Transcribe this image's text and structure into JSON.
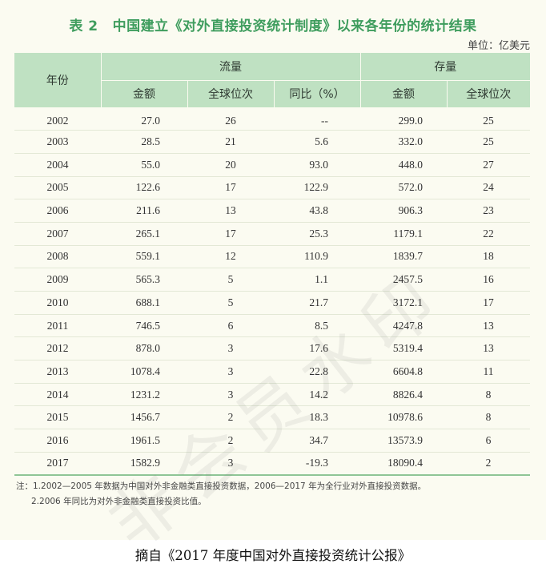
{
  "title": {
    "table_no": "表 2",
    "text": "中国建立《对外直接投资统计制度》以来各年份的统计结果"
  },
  "unit": "单位：亿美元",
  "headers": {
    "year": "年份",
    "flow": "流量",
    "stock": "存量",
    "flow_amount": "金额",
    "flow_rank": "全球位次",
    "flow_yoy": "同比（%）",
    "stock_amount": "金额",
    "stock_rank": "全球位次"
  },
  "rows": [
    {
      "year": "2002",
      "flow": "27.0",
      "flow_rank": "26",
      "yoy": "--",
      "stock": "299.0",
      "stock_rank": "25"
    },
    {
      "year": "2003",
      "flow": "28.5",
      "flow_rank": "21",
      "yoy": "5.6",
      "stock": "332.0",
      "stock_rank": "25"
    },
    {
      "year": "2004",
      "flow": "55.0",
      "flow_rank": "20",
      "yoy": "93.0",
      "stock": "448.0",
      "stock_rank": "27"
    },
    {
      "year": "2005",
      "flow": "122.6",
      "flow_rank": "17",
      "yoy": "122.9",
      "stock": "572.0",
      "stock_rank": "24"
    },
    {
      "year": "2006",
      "flow": "211.6",
      "flow_rank": "13",
      "yoy": "43.8",
      "stock": "906.3",
      "stock_rank": "23"
    },
    {
      "year": "2007",
      "flow": "265.1",
      "flow_rank": "17",
      "yoy": "25.3",
      "stock": "1179.1",
      "stock_rank": "22"
    },
    {
      "year": "2008",
      "flow": "559.1",
      "flow_rank": "12",
      "yoy": "110.9",
      "stock": "1839.7",
      "stock_rank": "18"
    },
    {
      "year": "2009",
      "flow": "565.3",
      "flow_rank": "5",
      "yoy": "1.1",
      "stock": "2457.5",
      "stock_rank": "16"
    },
    {
      "year": "2010",
      "flow": "688.1",
      "flow_rank": "5",
      "yoy": "21.7",
      "stock": "3172.1",
      "stock_rank": "17"
    },
    {
      "year": "2011",
      "flow": "746.5",
      "flow_rank": "6",
      "yoy": "8.5",
      "stock": "4247.8",
      "stock_rank": "13"
    },
    {
      "year": "2012",
      "flow": "878.0",
      "flow_rank": "3",
      "yoy": "17.6",
      "stock": "5319.4",
      "stock_rank": "13"
    },
    {
      "year": "2013",
      "flow": "1078.4",
      "flow_rank": "3",
      "yoy": "22.8",
      "stock": "6604.8",
      "stock_rank": "11"
    },
    {
      "year": "2014",
      "flow": "1231.2",
      "flow_rank": "3",
      "yoy": "14.2",
      "stock": "8826.4",
      "stock_rank": "8"
    },
    {
      "year": "2015",
      "flow": "1456.7",
      "flow_rank": "2",
      "yoy": "18.3",
      "stock": "10978.6",
      "stock_rank": "8"
    },
    {
      "year": "2016",
      "flow": "1961.5",
      "flow_rank": "2",
      "yoy": "34.7",
      "stock": "13573.9",
      "stock_rank": "6"
    },
    {
      "year": "2017",
      "flow": "1582.9",
      "flow_rank": "3",
      "yoy": "-19.3",
      "stock": "18090.4",
      "stock_rank": "2"
    }
  ],
  "notes": {
    "n1": "注：1.2002—2005 年数据为中国对外非金融类直接投资数据，2006—2017 年为全行业对外直接投资数据。",
    "n2": "2.2006 年同比为对外非金融类直接投资比值。"
  },
  "watermark": "非会员水印",
  "caption": "摘自《2017 年度中国对外直接投资统计公报》",
  "colors": {
    "title_green": "#3f9d5e",
    "header_bg": "#bfe1c2",
    "card_bg": "#fbfbf1"
  }
}
